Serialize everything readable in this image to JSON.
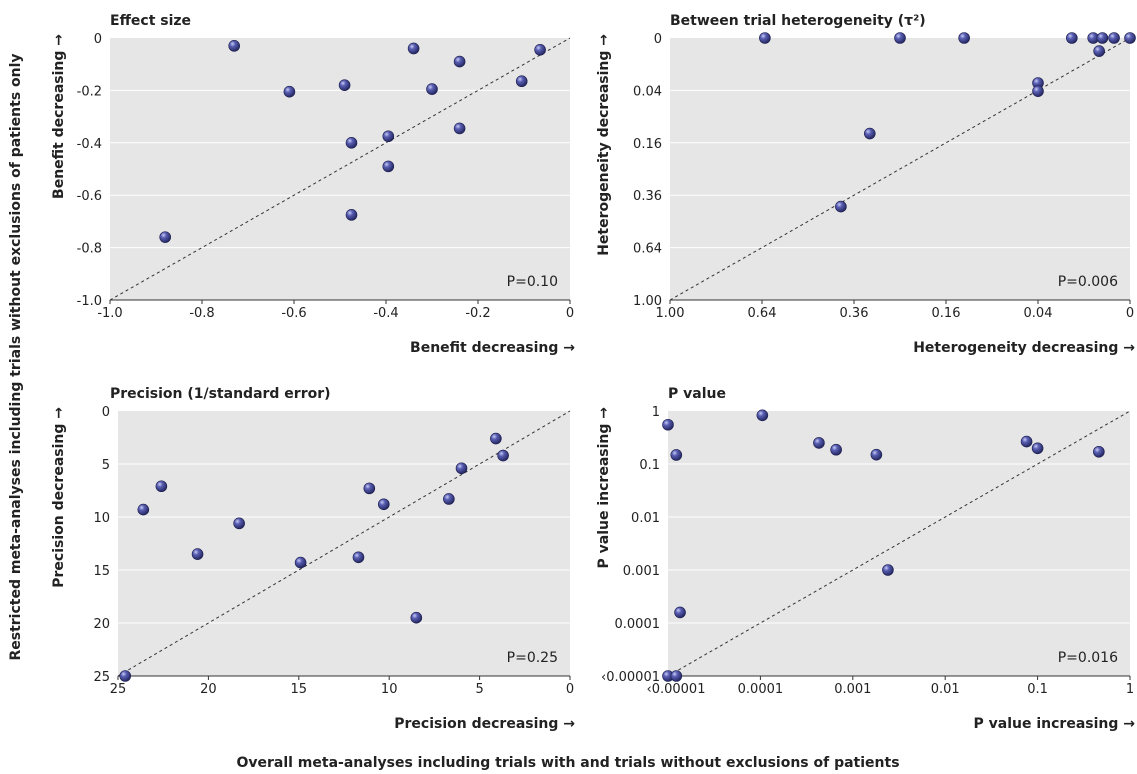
{
  "figure": {
    "y_outer_label": "Restricted meta-analyses including trials without exclusions of patients only",
    "x_outer_label": "Overall meta-analyses including trials with and trials without exclusions of patients",
    "colors": {
      "point": "#3b3e8c",
      "plot_bg": "#e6e6e6",
      "grid": "#ffffff"
    }
  },
  "chart_data": [
    {
      "type": "scatter",
      "title": "Effect size",
      "xlabel": "Benefit decreasing →",
      "ylabel": "Benefit decreasing →",
      "p_value_text": "P=0.10",
      "x_ticks": [
        "-1.0",
        "-0.8",
        "-0.6",
        "-0.4",
        "-0.2",
        "0"
      ],
      "y_ticks": [
        "0",
        "-0.2",
        "-0.4",
        "-0.6",
        "-0.8",
        "-1.0"
      ],
      "xlim": [
        -1.0,
        0
      ],
      "ylim": [
        -1.0,
        0
      ],
      "points": [
        {
          "x": -0.88,
          "y": -0.76
        },
        {
          "x": -0.73,
          "y": -0.03
        },
        {
          "x": -0.61,
          "y": -0.205
        },
        {
          "x": -0.49,
          "y": -0.18
        },
        {
          "x": -0.475,
          "y": -0.4
        },
        {
          "x": -0.475,
          "y": -0.675
        },
        {
          "x": -0.395,
          "y": -0.375
        },
        {
          "x": -0.395,
          "y": -0.49
        },
        {
          "x": -0.34,
          "y": -0.04
        },
        {
          "x": -0.3,
          "y": -0.195
        },
        {
          "x": -0.24,
          "y": -0.09
        },
        {
          "x": -0.24,
          "y": -0.345
        },
        {
          "x": -0.105,
          "y": -0.165
        },
        {
          "x": -0.065,
          "y": -0.045
        }
      ]
    },
    {
      "type": "scatter",
      "title": "Between trial heterogeneity (τ²)",
      "xlabel": "Heterogeneity decreasing →",
      "ylabel": "Heterogeneity decreasing →",
      "p_value_text": "P=0.006",
      "x_ticks": [
        "1.00",
        "0.64",
        "0.36",
        "0.16",
        "0.04",
        "0"
      ],
      "y_ticks": [
        "0",
        "0.04",
        "0.16",
        "0.36",
        "0.64",
        "1.00"
      ],
      "scale": "sqrt",
      "xlim": [
        1.0,
        0
      ],
      "ylim": [
        1.0,
        0
      ],
      "points": [
        {
          "x": 0.63,
          "y": 0
        },
        {
          "x": 0.25,
          "y": 0
        },
        {
          "x": 0.13,
          "y": 0
        },
        {
          "x": 0.016,
          "y": 0
        },
        {
          "x": 0.0064,
          "y": 0
        },
        {
          "x": 0.0036,
          "y": 0
        },
        {
          "x": 0.0012,
          "y": 0
        },
        {
          "x": 0,
          "y": 0
        },
        {
          "x": 0.0045,
          "y": 0.0025
        },
        {
          "x": 0.04,
          "y": 0.0295
        },
        {
          "x": 0.04,
          "y": 0.0412
        },
        {
          "x": 0.32,
          "y": 0.133
        },
        {
          "x": 0.395,
          "y": 0.414
        }
      ]
    },
    {
      "type": "scatter",
      "title": "Precision (1/standard error)",
      "xlabel": "Precision decreasing →",
      "ylabel": "Precision decreasing →",
      "p_value_text": "P=0.25",
      "x_ticks": [
        "25",
        "20",
        "15",
        "10",
        "5",
        "0"
      ],
      "y_ticks": [
        "0",
        "5",
        "10",
        "15",
        "20",
        "25"
      ],
      "xlim": [
        25,
        0
      ],
      "ylim": [
        25,
        0
      ],
      "points": [
        {
          "x": 24.6,
          "y": 25.0
        },
        {
          "x": 23.6,
          "y": 9.3
        },
        {
          "x": 22.6,
          "y": 7.1
        },
        {
          "x": 20.6,
          "y": 13.5
        },
        {
          "x": 18.3,
          "y": 10.6
        },
        {
          "x": 14.9,
          "y": 14.3
        },
        {
          "x": 11.7,
          "y": 13.8
        },
        {
          "x": 11.1,
          "y": 7.3
        },
        {
          "x": 10.3,
          "y": 8.8
        },
        {
          "x": 8.5,
          "y": 19.5
        },
        {
          "x": 6.7,
          "y": 8.3
        },
        {
          "x": 6.0,
          "y": 5.4
        },
        {
          "x": 4.1,
          "y": 2.6
        },
        {
          "x": 3.7,
          "y": 4.2
        }
      ]
    },
    {
      "type": "scatter",
      "title": "P value",
      "xlabel": "P value increasing →",
      "ylabel": "P value increasing →",
      "p_value_text": "P=0.016",
      "x_ticks": [
        "‹0.00001",
        "0.0001",
        "0.001",
        "0.01",
        "0.1",
        "1"
      ],
      "y_ticks": [
        "1",
        "0.1",
        "0.01",
        "0.001",
        "0.0001",
        "‹0.00001"
      ],
      "scale": "log10",
      "xlim": [
        1e-05,
        1
      ],
      "ylim": [
        1e-05,
        1
      ],
      "points": [
        {
          "x": 1e-05,
          "y": 1e-05
        },
        {
          "x": 1.23e-05,
          "y": 1e-05
        },
        {
          "x": 1e-05,
          "y": 0.55
        },
        {
          "x": 1.35e-05,
          "y": 0.0001583
        },
        {
          "x": 1.23e-05,
          "y": 0.148
        },
        {
          "x": 0.000105,
          "y": 0.83
        },
        {
          "x": 0.00043,
          "y": 0.25
        },
        {
          "x": 0.00066,
          "y": 0.186
        },
        {
          "x": 0.0018,
          "y": 0.15
        },
        {
          "x": 0.0024,
          "y": 0.001
        },
        {
          "x": 0.076,
          "y": 0.265
        },
        {
          "x": 0.1,
          "y": 0.198
        },
        {
          "x": 0.46,
          "y": 0.17
        }
      ]
    }
  ]
}
